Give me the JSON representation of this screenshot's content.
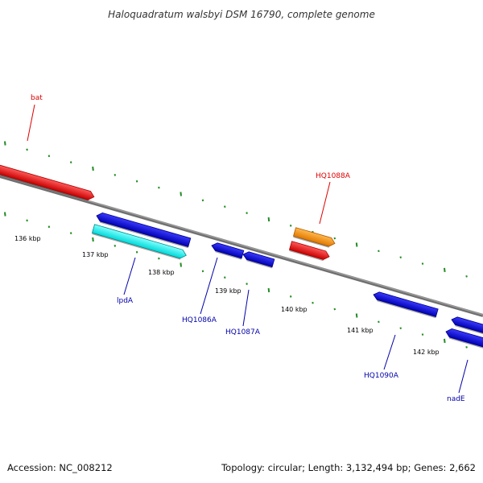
{
  "title": "Haloquadratum walsbyi DSM 16790, complete genome",
  "accession": "Accession: NC_008212",
  "summary": "Topology: circular; Length: 3,132,494 bp; Genes: 2,662",
  "colors": {
    "backbone": "#808080",
    "tick": "#228b22",
    "red": "#ff0000",
    "blue": "#0000ee",
    "cyan": "#00ffff",
    "orange": "#ff9900",
    "label_red": "#dd0000",
    "label_blue": "#0000aa"
  },
  "ticks": [
    {
      "label": "136 kbp"
    },
    {
      "label": "137 kbp"
    },
    {
      "label": "138 kbp"
    },
    {
      "label": "139 kbp"
    },
    {
      "label": "140 kbp"
    },
    {
      "label": "141 kbp"
    },
    {
      "label": "142 kbp"
    }
  ],
  "genes": [
    {
      "id": "bat",
      "label": "bat",
      "color": "red",
      "strand": "forward"
    },
    {
      "id": "HQ1088A",
      "label": "HQ1088A",
      "color": "orange",
      "strand": "forward"
    },
    {
      "id": "HQ1088A-red",
      "label": "",
      "color": "red",
      "strand": "forward"
    },
    {
      "id": "lpdA-blue",
      "label": "",
      "color": "blue",
      "strand": "reverse"
    },
    {
      "id": "lpdA",
      "label": "lpdA",
      "color": "cyan",
      "strand": "forward"
    },
    {
      "id": "HQ1086A",
      "label": "HQ1086A",
      "color": "blue",
      "strand": "reverse"
    },
    {
      "id": "HQ1087A",
      "label": "HQ1087A",
      "color": "blue",
      "strand": "reverse"
    },
    {
      "id": "HQ1090A",
      "label": "HQ1090A",
      "color": "blue",
      "strand": "reverse"
    },
    {
      "id": "nadE",
      "label": "nadE",
      "color": "blue",
      "strand": "reverse"
    },
    {
      "id": "nadE-upper",
      "label": "",
      "color": "blue",
      "strand": "reverse"
    }
  ]
}
